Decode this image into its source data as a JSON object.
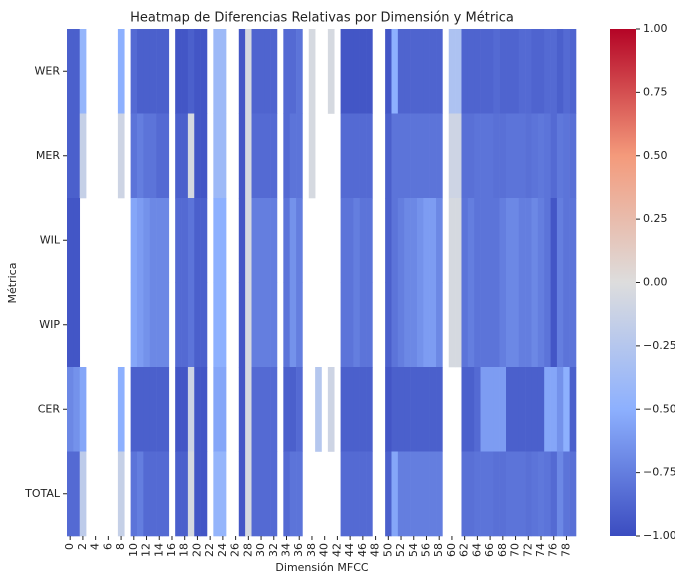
{
  "chart_data": {
    "type": "heatmap",
    "title": "Heatmap de Diferencias Relativas por Dimensión y Métrica",
    "x_label": "Dimensión MFCC",
    "y_label": "Métrica",
    "x": [
      0,
      1,
      2,
      3,
      4,
      5,
      6,
      7,
      8,
      9,
      10,
      11,
      12,
      13,
      14,
      15,
      16,
      17,
      18,
      19,
      20,
      21,
      22,
      23,
      24,
      25,
      26,
      27,
      28,
      29,
      30,
      31,
      32,
      33,
      34,
      35,
      36,
      37,
      38,
      39,
      40,
      41,
      42,
      43,
      44,
      45,
      46,
      47,
      48,
      49,
      50,
      51,
      52,
      53,
      54,
      55,
      56,
      57,
      58,
      59,
      60,
      61,
      62,
      63,
      64,
      65,
      66,
      67,
      68,
      69,
      70,
      71,
      72,
      73,
      74,
      75,
      76,
      77,
      78,
      79
    ],
    "xticks": [
      0,
      2,
      4,
      6,
      8,
      10,
      12,
      14,
      16,
      18,
      20,
      22,
      24,
      26,
      28,
      30,
      32,
      34,
      36,
      38,
      40,
      42,
      44,
      46,
      48,
      50,
      52,
      54,
      56,
      58,
      60,
      62,
      64,
      66,
      68,
      70,
      72,
      74,
      76,
      78
    ],
    "categories": [
      "WER",
      "MER",
      "WIL",
      "WIP",
      "CER",
      "TOTAL"
    ],
    "z": [
      [
        -0.9,
        -0.9,
        -0.45,
        null,
        null,
        null,
        null,
        null,
        -0.5,
        null,
        -0.85,
        -0.9,
        -0.9,
        -0.9,
        -0.9,
        -0.9,
        null,
        -0.95,
        -0.95,
        -0.9,
        -0.95,
        -0.95,
        null,
        -0.4,
        -0.4,
        null,
        null,
        -0.95,
        -0.05,
        -0.88,
        -0.88,
        -0.88,
        -0.88,
        null,
        -0.85,
        -0.85,
        -0.8,
        null,
        -0.05,
        null,
        null,
        -0.05,
        null,
        -0.95,
        -0.95,
        -0.95,
        -0.95,
        -0.95,
        null,
        null,
        -0.95,
        -0.5,
        -0.88,
        -0.88,
        -0.88,
        -0.88,
        -0.88,
        -0.88,
        -0.88,
        null,
        -0.3,
        -0.3,
        -0.88,
        -0.88,
        -0.88,
        -0.88,
        -0.88,
        -0.85,
        -0.88,
        -0.88,
        -0.88,
        -0.85,
        -0.85,
        -0.88,
        -0.88,
        -0.85,
        -0.85,
        -0.9,
        -0.85,
        -0.88
      ],
      [
        -0.9,
        -0.9,
        -0.15,
        null,
        null,
        null,
        null,
        null,
        -0.1,
        null,
        -0.8,
        -0.75,
        -0.8,
        -0.8,
        -0.85,
        -0.85,
        null,
        -0.9,
        -0.9,
        -0.05,
        -0.95,
        -0.95,
        null,
        -0.4,
        -0.4,
        null,
        null,
        -0.95,
        -0.05,
        -0.85,
        -0.85,
        -0.85,
        -0.85,
        null,
        -0.85,
        -0.8,
        -0.8,
        null,
        -0.05,
        null,
        null,
        null,
        null,
        -0.85,
        -0.85,
        -0.85,
        -0.85,
        -0.85,
        null,
        null,
        -0.9,
        -0.8,
        -0.8,
        -0.8,
        -0.8,
        -0.8,
        -0.8,
        -0.8,
        -0.8,
        null,
        -0.1,
        -0.1,
        -0.82,
        -0.82,
        -0.8,
        -0.8,
        -0.8,
        -0.82,
        -0.82,
        -0.8,
        -0.8,
        -0.8,
        -0.82,
        -0.8,
        -0.78,
        -0.8,
        -0.85,
        -0.78,
        -0.8,
        -0.82
      ],
      [
        -0.95,
        -0.95,
        null,
        null,
        null,
        null,
        null,
        null,
        null,
        null,
        -0.55,
        -0.6,
        -0.65,
        -0.7,
        -0.7,
        -0.7,
        null,
        -0.85,
        -0.85,
        -0.8,
        -0.9,
        -0.9,
        null,
        -0.5,
        -0.5,
        null,
        null,
        -0.95,
        -0.05,
        -0.75,
        -0.75,
        -0.75,
        -0.75,
        null,
        -0.8,
        -0.65,
        -0.75,
        null,
        null,
        null,
        null,
        null,
        null,
        -0.8,
        -0.8,
        -0.75,
        -0.8,
        -0.8,
        null,
        null,
        -0.9,
        -0.8,
        -0.75,
        -0.7,
        -0.7,
        -0.65,
        -0.6,
        -0.6,
        -0.7,
        null,
        -0.05,
        -0.05,
        -0.8,
        -0.75,
        -0.8,
        -0.8,
        -0.8,
        -0.8,
        -0.75,
        -0.7,
        -0.7,
        -0.75,
        -0.75,
        -0.7,
        -0.75,
        -0.8,
        -0.95,
        -0.75,
        -0.8,
        -0.8
      ],
      [
        -0.95,
        -0.95,
        null,
        null,
        null,
        null,
        null,
        null,
        null,
        null,
        -0.55,
        -0.6,
        -0.65,
        -0.7,
        -0.7,
        -0.7,
        null,
        -0.85,
        -0.85,
        -0.8,
        -0.9,
        -0.9,
        null,
        -0.5,
        -0.5,
        null,
        null,
        -0.95,
        -0.05,
        -0.75,
        -0.75,
        -0.75,
        -0.75,
        null,
        -0.8,
        -0.65,
        -0.75,
        null,
        null,
        null,
        null,
        null,
        null,
        -0.8,
        -0.8,
        -0.75,
        -0.8,
        -0.8,
        null,
        null,
        -0.9,
        -0.8,
        -0.75,
        -0.7,
        -0.7,
        -0.65,
        -0.6,
        -0.6,
        -0.7,
        null,
        -0.05,
        -0.05,
        -0.8,
        -0.75,
        -0.8,
        -0.8,
        -0.8,
        -0.8,
        -0.75,
        -0.7,
        -0.7,
        -0.75,
        -0.75,
        -0.7,
        -0.75,
        -0.8,
        -0.95,
        -0.75,
        -0.8,
        -0.8
      ],
      [
        -0.7,
        -0.65,
        -0.55,
        null,
        null,
        null,
        null,
        null,
        -0.5,
        null,
        -0.9,
        -0.9,
        -0.9,
        -0.9,
        -0.9,
        -0.9,
        null,
        -0.95,
        -0.95,
        -0.1,
        -0.95,
        -0.95,
        null,
        -0.55,
        -0.55,
        null,
        null,
        -0.95,
        -0.05,
        -0.85,
        -0.85,
        -0.85,
        -0.85,
        null,
        -0.9,
        -0.9,
        -0.85,
        null,
        null,
        -0.25,
        null,
        -0.1,
        null,
        -0.9,
        -0.9,
        -0.9,
        -0.9,
        -0.9,
        null,
        null,
        -0.95,
        -0.9,
        -0.9,
        -0.9,
        -0.9,
        -0.9,
        -0.9,
        -0.9,
        -0.9,
        null,
        null,
        null,
        -0.9,
        -0.9,
        -0.85,
        -0.6,
        -0.6,
        -0.6,
        -0.6,
        -0.9,
        -0.9,
        -0.9,
        -0.9,
        -0.9,
        -0.9,
        -0.55,
        -0.55,
        -0.65,
        -0.5,
        -0.9
      ],
      [
        -0.85,
        -0.85,
        -0.2,
        null,
        null,
        null,
        null,
        null,
        -0.15,
        null,
        -0.8,
        -0.75,
        -0.85,
        -0.85,
        -0.85,
        -0.85,
        null,
        -0.9,
        -0.9,
        -0.05,
        -0.95,
        -0.95,
        null,
        -0.45,
        -0.45,
        null,
        null,
        -0.95,
        -0.05,
        -0.85,
        -0.85,
        -0.85,
        -0.85,
        null,
        -0.85,
        -0.8,
        -0.8,
        null,
        null,
        null,
        null,
        null,
        null,
        -0.85,
        -0.85,
        -0.85,
        -0.85,
        -0.85,
        null,
        null,
        -0.9,
        -0.55,
        -0.75,
        -0.75,
        -0.75,
        -0.75,
        -0.75,
        -0.75,
        -0.75,
        null,
        null,
        null,
        -0.82,
        -0.82,
        -0.8,
        -0.8,
        -0.8,
        -0.82,
        -0.82,
        -0.8,
        -0.8,
        -0.8,
        -0.82,
        -0.8,
        -0.78,
        -0.8,
        -0.85,
        -0.7,
        -0.8,
        -0.82
      ]
    ],
    "zlim": [
      -1,
      1
    ],
    "colorscale": [
      "#3b4cc0",
      "#8db0fe",
      "#dddddd",
      "#f49a7b",
      "#b40426"
    ],
    "colorbar_ticks": [
      {
        "value": 1,
        "label": "1.00"
      },
      {
        "value": 0.75,
        "label": "0.75"
      },
      {
        "value": 0.5,
        "label": "0.50"
      },
      {
        "value": 0.25,
        "label": "0.25"
      },
      {
        "value": 0,
        "label": "0.00"
      },
      {
        "value": -0.25,
        "label": "−0.25"
      },
      {
        "value": -0.5,
        "label": "−0.50"
      },
      {
        "value": -0.75,
        "label": "−0.75"
      },
      {
        "value": -1,
        "label": "−1.00"
      }
    ]
  }
}
